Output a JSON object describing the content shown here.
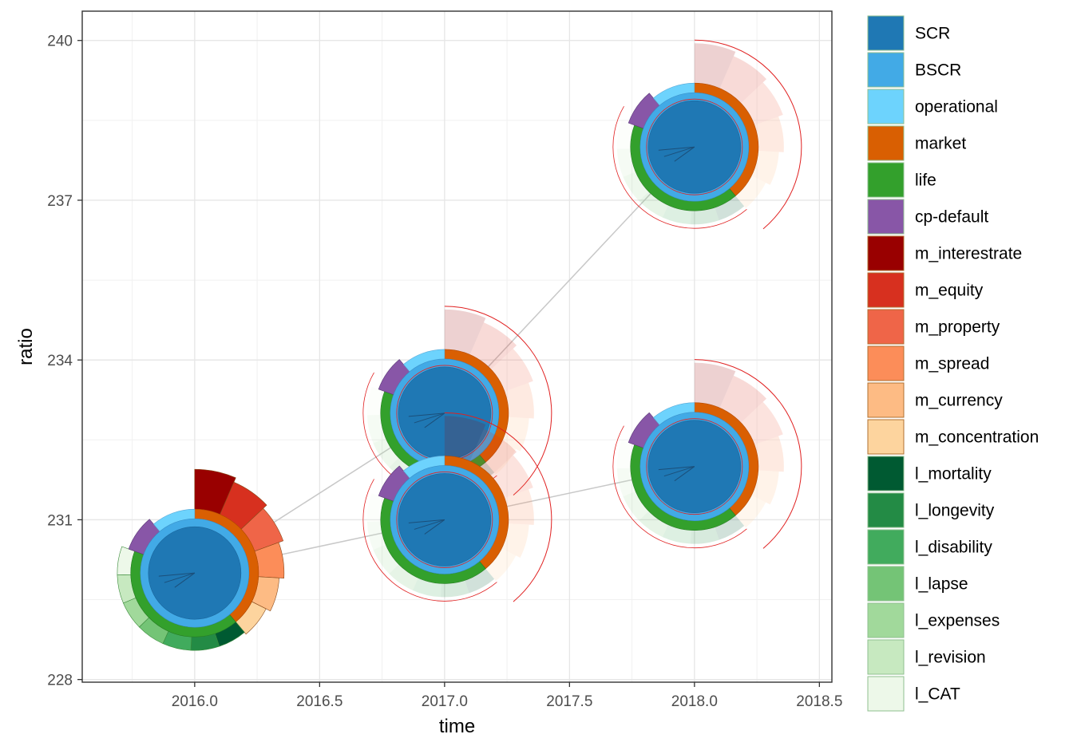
{
  "chart_data": {
    "type": "scatter",
    "xlabel": "time",
    "ylabel": "ratio",
    "xlim": [
      2015.55,
      2018.55
    ],
    "ylim": [
      227.95,
      240.55
    ],
    "x_ticks": [
      "2016.0",
      "2016.5",
      "2017.0",
      "2017.5",
      "2018.0",
      "2018.5"
    ],
    "y_ticks": [
      "228",
      "231",
      "234",
      "237",
      "240"
    ],
    "grid": true,
    "legend_position": "right",
    "legend": [
      {
        "label": "SCR",
        "color": "#1f78b4"
      },
      {
        "label": "BSCR",
        "color": "#42aae6"
      },
      {
        "label": "operational",
        "color": "#6dd3fd"
      },
      {
        "label": "market",
        "color": "#d95f02"
      },
      {
        "label": "life",
        "color": "#33a02c"
      },
      {
        "label": "cp-default",
        "color": "#8856a7"
      },
      {
        "label": "m_interestrate",
        "color": "#990000"
      },
      {
        "label": "m_equity",
        "color": "#d7301f"
      },
      {
        "label": "m_property",
        "color": "#ef6548"
      },
      {
        "label": "m_spread",
        "color": "#fc8d59"
      },
      {
        "label": "m_currency",
        "color": "#fdbb84"
      },
      {
        "label": "m_concentration",
        "color": "#fdd49e"
      },
      {
        "label": "l_mortality",
        "color": "#005a32"
      },
      {
        "label": "l_longevity",
        "color": "#238b45"
      },
      {
        "label": "l_disability",
        "color": "#41ab5d"
      },
      {
        "label": "l_lapse",
        "color": "#74c476"
      },
      {
        "label": "l_expenses",
        "color": "#a1d99b"
      },
      {
        "label": "l_revision",
        "color": "#c7e9c0"
      },
      {
        "label": "l_CAT",
        "color": "#edf8e9"
      }
    ],
    "points": [
      {
        "x": 2016.0,
        "y": 230.0,
        "faded": false
      },
      {
        "x": 2017.0,
        "y": 233.0,
        "faded": true
      },
      {
        "x": 2017.0,
        "y": 231.0,
        "faded": true
      },
      {
        "x": 2018.0,
        "y": 238.0,
        "faded": true
      },
      {
        "x": 2018.0,
        "y": 232.0,
        "faded": true
      }
    ],
    "connections": [
      [
        0,
        1
      ],
      [
        1,
        3
      ],
      [
        0,
        2
      ],
      [
        2,
        4
      ]
    ]
  }
}
